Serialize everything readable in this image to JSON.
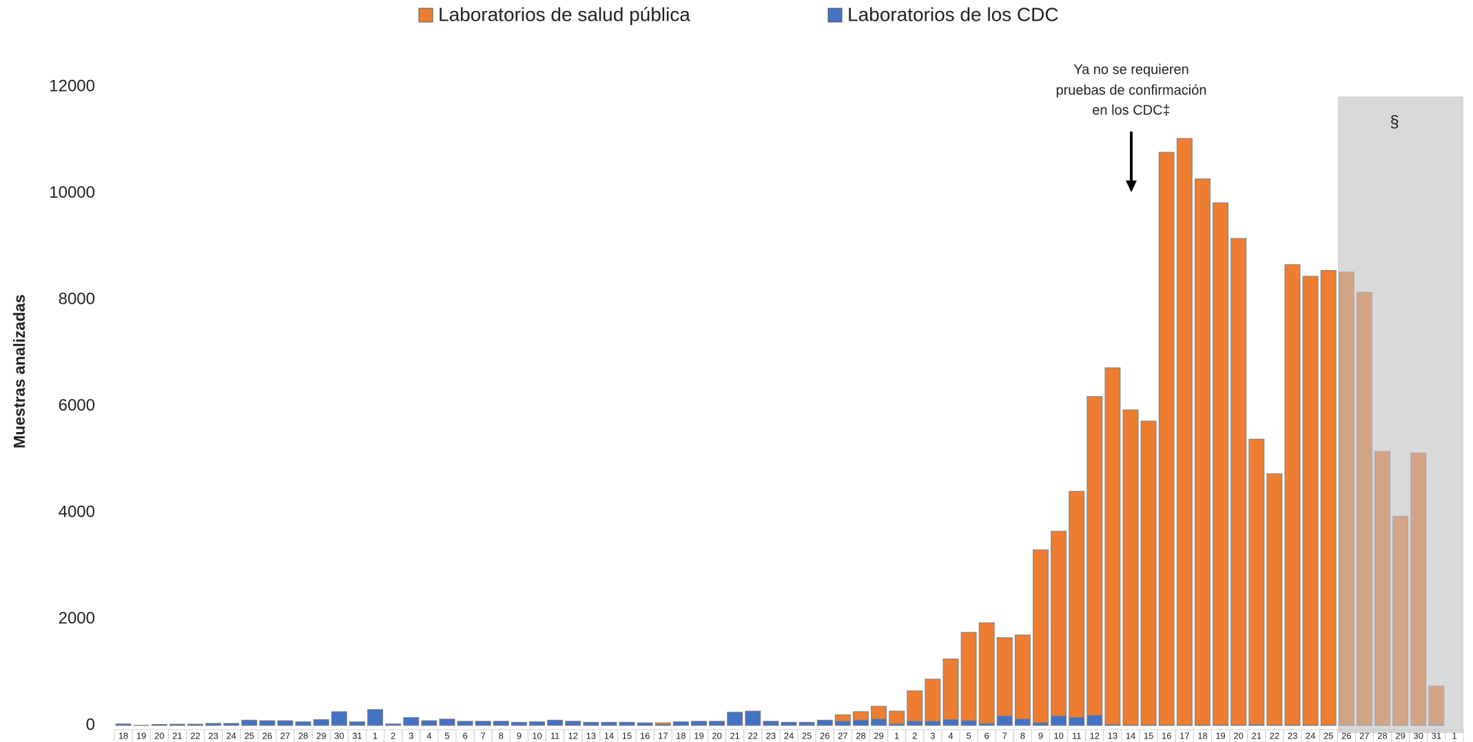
{
  "chart_data": {
    "type": "stacked_bar",
    "ylabel": "Muestras analizadas",
    "annotation": [
      "Ya no se requieren",
      "pruebas de confirmación",
      "en los CDC‡"
    ],
    "shaded_label": "§",
    "categories": [
      "18",
      "19",
      "20",
      "21",
      "22",
      "23",
      "24",
      "25",
      "26",
      "27",
      "28",
      "29",
      "30",
      "31",
      "1",
      "2",
      "3",
      "4",
      "5",
      "6",
      "7",
      "8",
      "9",
      "10",
      "11",
      "12",
      "13",
      "14",
      "15",
      "16",
      "17",
      "18",
      "19",
      "20",
      "21",
      "22",
      "23",
      "24",
      "25",
      "26",
      "27",
      "28",
      "29",
      "1",
      "2",
      "3",
      "4",
      "5",
      "6",
      "7",
      "8",
      "9",
      "10",
      "11",
      "12",
      "13",
      "14",
      "15",
      "16",
      "17",
      "18",
      "19",
      "20",
      "21",
      "22",
      "23",
      "24",
      "25",
      "26",
      "27",
      "28",
      "29",
      "30",
      "31",
      "1"
    ],
    "series": [
      {
        "name": "Laboratorios de salud pública",
        "color": "#ed7d31",
        "values": [
          0,
          0,
          0,
          0,
          0,
          0,
          0,
          0,
          0,
          0,
          0,
          0,
          0,
          0,
          0,
          0,
          0,
          0,
          0,
          0,
          0,
          0,
          0,
          0,
          0,
          0,
          0,
          0,
          0,
          0,
          30,
          0,
          0,
          0,
          0,
          0,
          0,
          0,
          0,
          0,
          120,
          160,
          240,
          240,
          570,
          790,
          1140,
          1660,
          1890,
          1470,
          1580,
          3250,
          3470,
          4250,
          5990,
          6700,
          5920,
          5710,
          10760,
          11020,
          10260,
          9810,
          9140,
          5360,
          4720,
          8650,
          8430,
          8540,
          8510,
          8130,
          5140,
          3920,
          5110,
          720,
          0
        ]
      },
      {
        "name": "Laboratorios de los CDC",
        "color": "#4472c4",
        "values": [
          30,
          5,
          20,
          25,
          25,
          40,
          40,
          100,
          90,
          90,
          70,
          110,
          260,
          70,
          300,
          30,
          150,
          90,
          120,
          80,
          80,
          80,
          60,
          70,
          100,
          80,
          60,
          60,
          60,
          50,
          20,
          70,
          80,
          80,
          250,
          270,
          80,
          60,
          60,
          100,
          80,
          100,
          120,
          30,
          80,
          80,
          110,
          90,
          40,
          180,
          120,
          50,
          180,
          150,
          190,
          20,
          10,
          10,
          10,
          10,
          10,
          10,
          10,
          20,
          10,
          10,
          10,
          10,
          10,
          10,
          10,
          10,
          10,
          20,
          0
        ]
      }
    ],
    "ylim": [
      0,
      12000
    ],
    "yticks": [
      0,
      2000,
      4000,
      6000,
      8000,
      10000,
      12000
    ],
    "grid": false,
    "legend": "top"
  }
}
